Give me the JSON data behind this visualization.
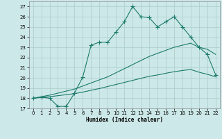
{
  "line1_x": [
    0,
    1,
    2,
    3,
    4,
    5,
    6,
    7,
    8,
    9,
    10,
    11,
    12,
    13,
    14,
    15,
    16,
    17,
    18,
    19,
    20,
    21,
    22
  ],
  "line1_y": [
    18,
    18.1,
    18,
    17.2,
    17.2,
    18.5,
    20.1,
    23.2,
    23.5,
    23.5,
    24.5,
    25.5,
    27,
    26,
    25.9,
    25,
    25.5,
    26,
    25,
    24,
    23,
    22.3,
    20.3
  ],
  "line2_x": [
    0,
    1,
    2,
    3,
    4,
    5,
    6,
    7,
    8,
    9,
    10,
    11,
    12,
    13,
    14,
    15,
    16,
    17,
    18,
    19,
    20,
    21,
    22
  ],
  "line2_y": [
    18,
    18.15,
    18.3,
    18.5,
    18.7,
    18.9,
    19.2,
    19.5,
    19.8,
    20.1,
    20.5,
    20.9,
    21.3,
    21.7,
    22.1,
    22.4,
    22.7,
    23.0,
    23.2,
    23.4,
    23.0,
    22.8,
    22.3
  ],
  "line3_x": [
    0,
    1,
    2,
    3,
    4,
    5,
    6,
    7,
    8,
    9,
    10,
    11,
    12,
    13,
    14,
    15,
    16,
    17,
    18,
    19,
    20,
    21,
    22
  ],
  "line3_y": [
    18,
    18.08,
    18.15,
    18.25,
    18.35,
    18.45,
    18.6,
    18.78,
    18.95,
    19.15,
    19.35,
    19.55,
    19.75,
    19.95,
    20.15,
    20.28,
    20.45,
    20.6,
    20.72,
    20.82,
    20.55,
    20.35,
    20.1
  ],
  "line_color": "#1a7a6a",
  "bg_color": "#cde8e8",
  "grid_color": "#aacccc",
  "xlabel": "Humidex (Indice chaleur)",
  "ylim": [
    17,
    27.5
  ],
  "xlim": [
    -0.5,
    22.5
  ],
  "yticks": [
    17,
    18,
    19,
    20,
    21,
    22,
    23,
    24,
    25,
    26,
    27
  ],
  "xticks": [
    0,
    1,
    2,
    3,
    4,
    5,
    6,
    7,
    8,
    9,
    10,
    11,
    12,
    13,
    14,
    15,
    16,
    17,
    18,
    19,
    20,
    21,
    22
  ],
  "marker": "+",
  "marker_size": 4,
  "line_width": 0.8
}
